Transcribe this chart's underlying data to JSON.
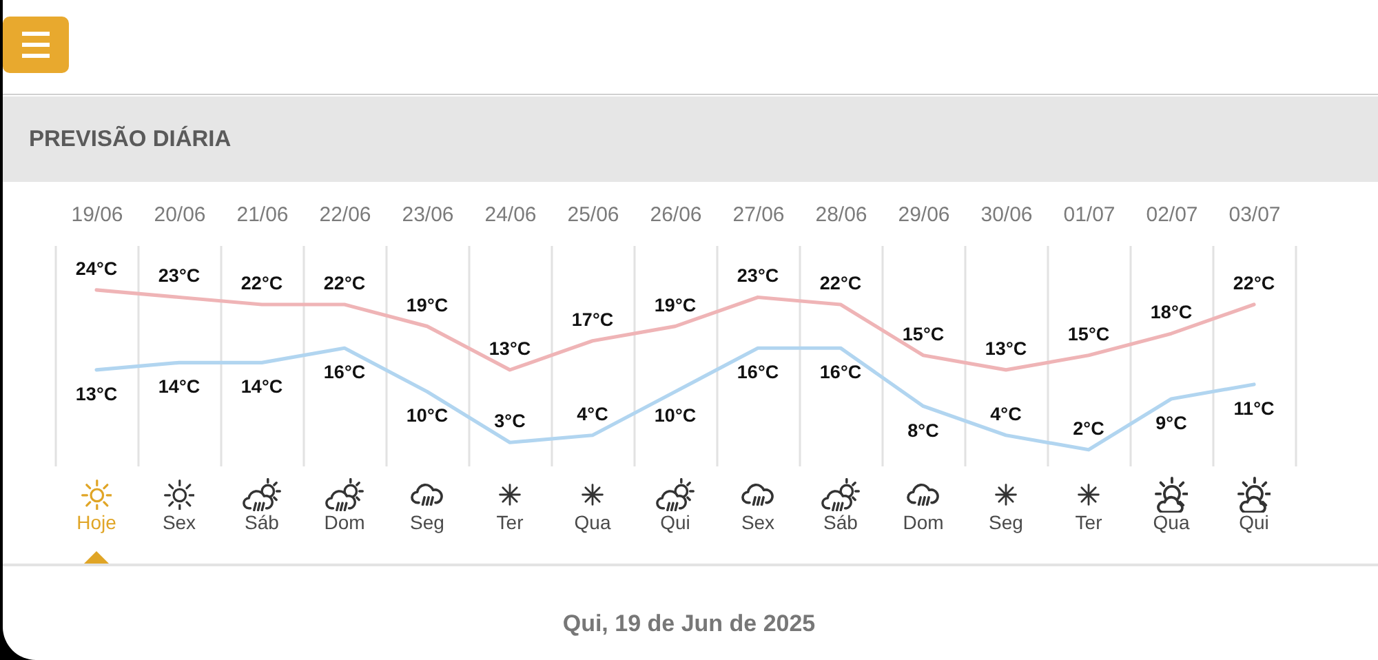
{
  "chart_data": {
    "type": "line",
    "title": "PREVISÃO DIÁRIA",
    "categories": [
      "19/06",
      "20/06",
      "21/06",
      "22/06",
      "23/06",
      "24/06",
      "25/06",
      "26/06",
      "27/06",
      "28/06",
      "29/06",
      "30/06",
      "01/07",
      "02/07",
      "03/07"
    ],
    "series": [
      {
        "color": "#efb4b6",
        "values": [
          24,
          23,
          22,
          22,
          19,
          13,
          17,
          19,
          23,
          22,
          15,
          13,
          15,
          18,
          22
        ],
        "value_labels": [
          "24°C",
          "23°C",
          "22°C",
          "22°C",
          "19°C",
          "13°C",
          "17°C",
          "19°C",
          "23°C",
          "22°C",
          "15°C",
          "13°C",
          "15°C",
          "18°C",
          "22°C"
        ]
      },
      {
        "color": "#b1d5f0",
        "values": [
          13,
          14,
          14,
          16,
          10,
          3,
          4,
          10,
          16,
          16,
          8,
          4,
          2,
          9,
          11
        ],
        "value_labels": [
          "13°C",
          "14°C",
          "14°C",
          "16°C",
          "10°C",
          "3°C",
          "4°C",
          "10°C",
          "16°C",
          "16°C",
          "8°C",
          "4°C",
          "2°C",
          "9°C",
          "11°C"
        ]
      }
    ],
    "annotations": [
      "Hoje",
      "Sex",
      "Sáb",
      "Dom",
      "Seg",
      "Ter",
      "Qua",
      "Qui",
      "Sex",
      "Sáb",
      "Dom",
      "Seg",
      "Ter",
      "Qua",
      "Qui",
      "Qui, 19 de Jun de 2025"
    ],
    "grid": "x",
    "tick_labels": "x"
  }
}
